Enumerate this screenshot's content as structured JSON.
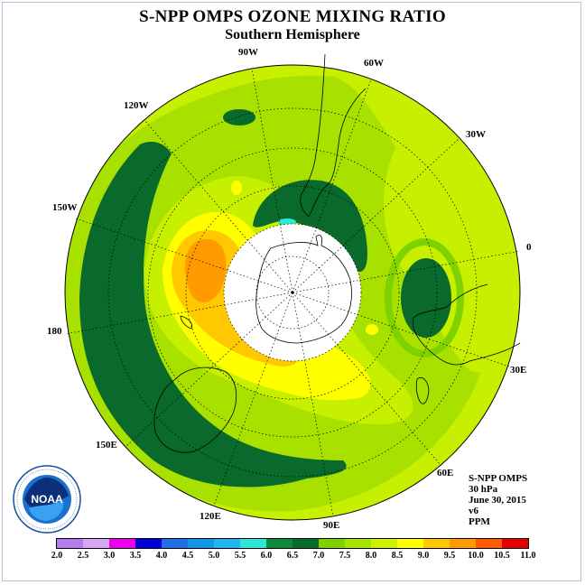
{
  "header": {
    "title": "S-NPP OMPS OZONE MIXING RATIO",
    "subtitle": "Southern Hemisphere"
  },
  "longitude_labels": [
    "90W",
    "60W",
    "120W",
    "30W",
    "150W",
    "0",
    "180",
    "30E",
    "150E",
    "60E",
    "120E",
    "90E"
  ],
  "info": {
    "instrument": "S-NPP OMPS",
    "level": "30 hPa",
    "date": "June 30, 2015",
    "version": "v6",
    "units": "PPM"
  },
  "logo": {
    "icon": "noaa-logo-icon",
    "text": "NOAA"
  },
  "colorbar": {
    "ticks": [
      "2.0",
      "2.5",
      "3.0",
      "3.5",
      "4.0",
      "4.5",
      "5.0",
      "5.5",
      "6.0",
      "6.5",
      "7.0",
      "7.5",
      "8.0",
      "8.5",
      "9.0",
      "9.5",
      "10.0",
      "10.5",
      "11.0"
    ],
    "colors": [
      "#b57cf0",
      "#d7a6f5",
      "#ee00ee",
      "#0000d8",
      "#1f6fe6",
      "#1296e8",
      "#22b6f0",
      "#2ee8d6",
      "#0a8c3a",
      "#066c2e",
      "#7fd200",
      "#a8e600",
      "#d0f000",
      "#ffff00",
      "#ffc800",
      "#ff9a00",
      "#ff5a00",
      "#e80000",
      "#7a4a2a"
    ]
  }
}
